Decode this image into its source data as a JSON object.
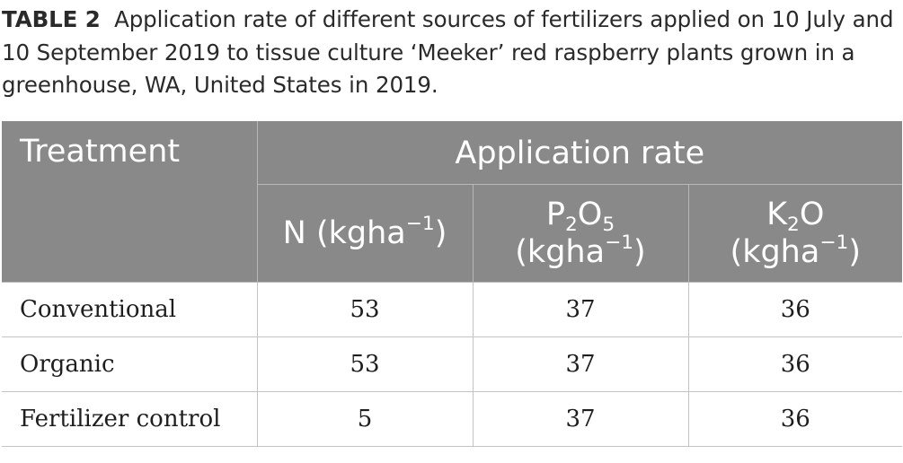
{
  "caption": {
    "label": "TABLE 2",
    "title": "Application rate of different sources of fertilizers applied on 10 July and 10 September 2019 to tissue culture ‘Meeker’ red raspberry plants grown in a greenhouse, WA, United States in 2019."
  },
  "table": {
    "header": {
      "treatment": "Treatment",
      "application_rate": "Application rate",
      "n": {
        "name": "N",
        "unit": "(kgha",
        "unit_exp": "−1",
        "unit_close": ")"
      },
      "p2o5": {
        "element1": "P",
        "sub1": "2",
        "element2": "O",
        "sub2": "5",
        "unit": "(kgha",
        "unit_exp": "−1",
        "unit_close": ")"
      },
      "k2o": {
        "element1": "K",
        "sub1": "2",
        "element2": "O",
        "unit": "(kgha",
        "unit_exp": "−1",
        "unit_close": ")"
      }
    },
    "rows": [
      {
        "treatment": "Conventional",
        "n": "53",
        "p2o5": "37",
        "k2o": "36"
      },
      {
        "treatment": "Organic",
        "n": "53",
        "p2o5": "37",
        "k2o": "36"
      },
      {
        "treatment": "Fertilizer control",
        "n": "5",
        "p2o5": "37",
        "k2o": "36"
      }
    ]
  }
}
